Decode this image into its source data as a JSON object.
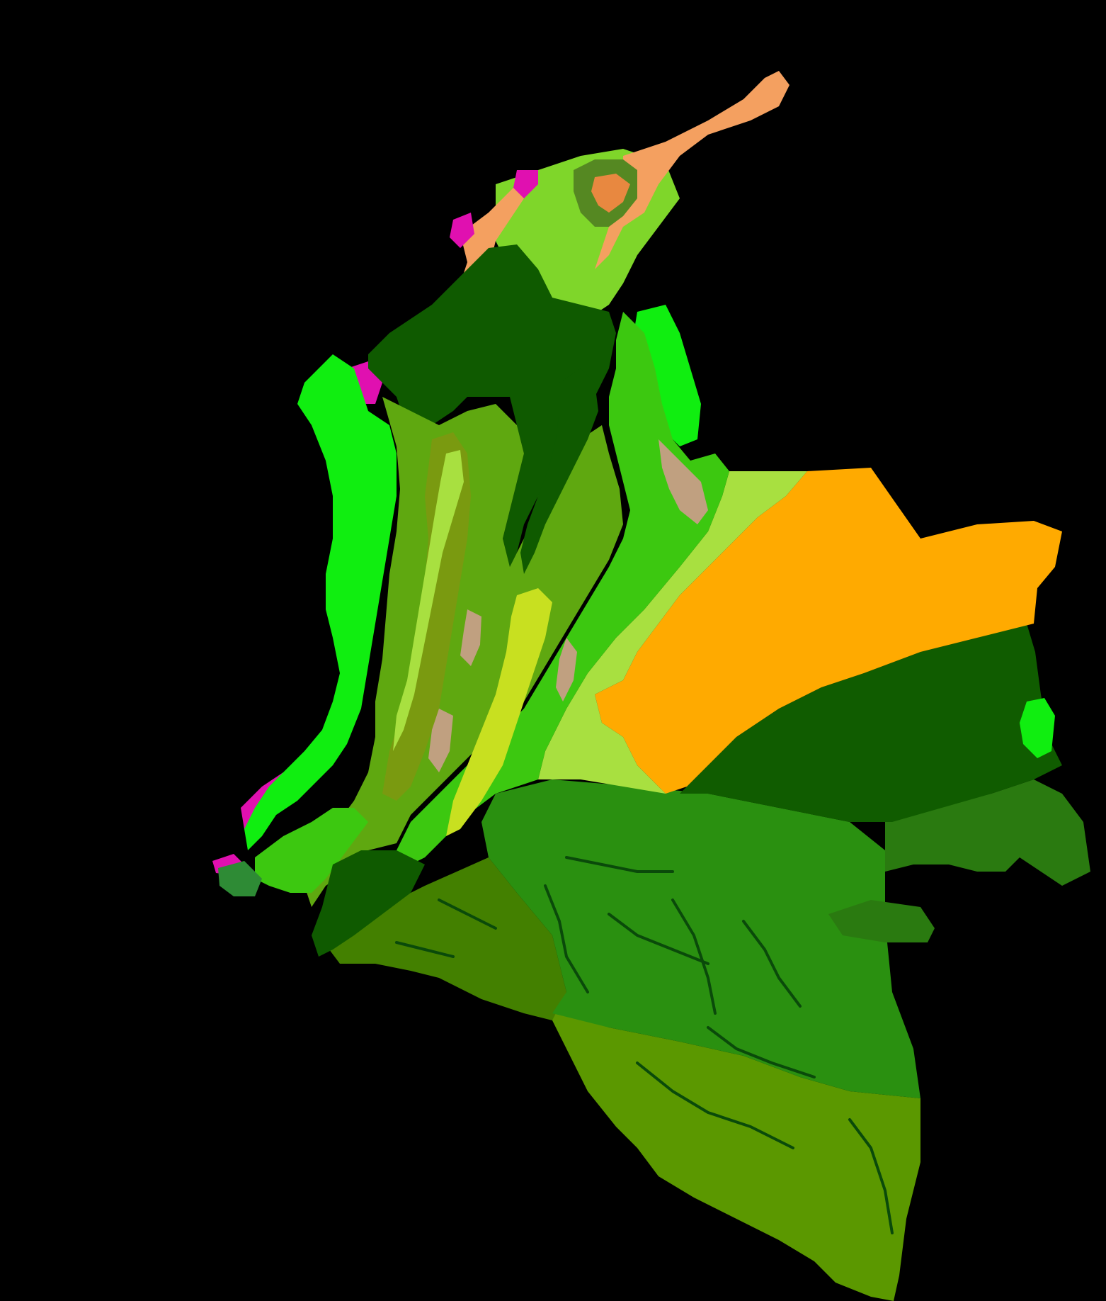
{
  "map": {
    "background": "#000000",
    "ecoregions": [
      {
        "id": "caribbean-coast-mangrove",
        "color": "#E010B0"
      },
      {
        "id": "guajira-xeric-scrub",
        "color": "#F4A060"
      },
      {
        "id": "sierra-nevada-paramo",
        "color": "#E88840"
      },
      {
        "id": "sierra-nevada-forest",
        "color": "#558822"
      },
      {
        "id": "caribbean-dry-forest",
        "color": "#7FD62A"
      },
      {
        "id": "magdalena-moist-forest",
        "color": "#0F5A00"
      },
      {
        "id": "choco-lowland-forest",
        "color": "#10EE10"
      },
      {
        "id": "catatumbo-moist-forest",
        "color": "#3CC810"
      },
      {
        "id": "andean-montane-forest",
        "color": "#5FA810"
      },
      {
        "id": "cauca-valley-dry-forest",
        "color": "#7A9A10"
      },
      {
        "id": "andean-paramo",
        "color": "#C0A080"
      },
      {
        "id": "magdalena-valley-dry-forest",
        "color": "#C8E020"
      },
      {
        "id": "piedmont-forest",
        "color": "#A8E040"
      },
      {
        "id": "llanos-savanna",
        "color": "#FFAA00"
      },
      {
        "id": "orinoco-moist-forest",
        "color": "#105C00"
      },
      {
        "id": "amazon-moist-forest",
        "color": "#2A9010"
      },
      {
        "id": "caqueta-moist-forest",
        "color": "#438000"
      },
      {
        "id": "putumayo-moist-forest",
        "color": "#5B9800"
      },
      {
        "id": "negro-campinarana",
        "color": "#2A7A10"
      },
      {
        "id": "pacific-coast-mangrove",
        "color": "#2E8B35"
      },
      {
        "id": "river",
        "color": "#0A4A0A"
      }
    ]
  }
}
